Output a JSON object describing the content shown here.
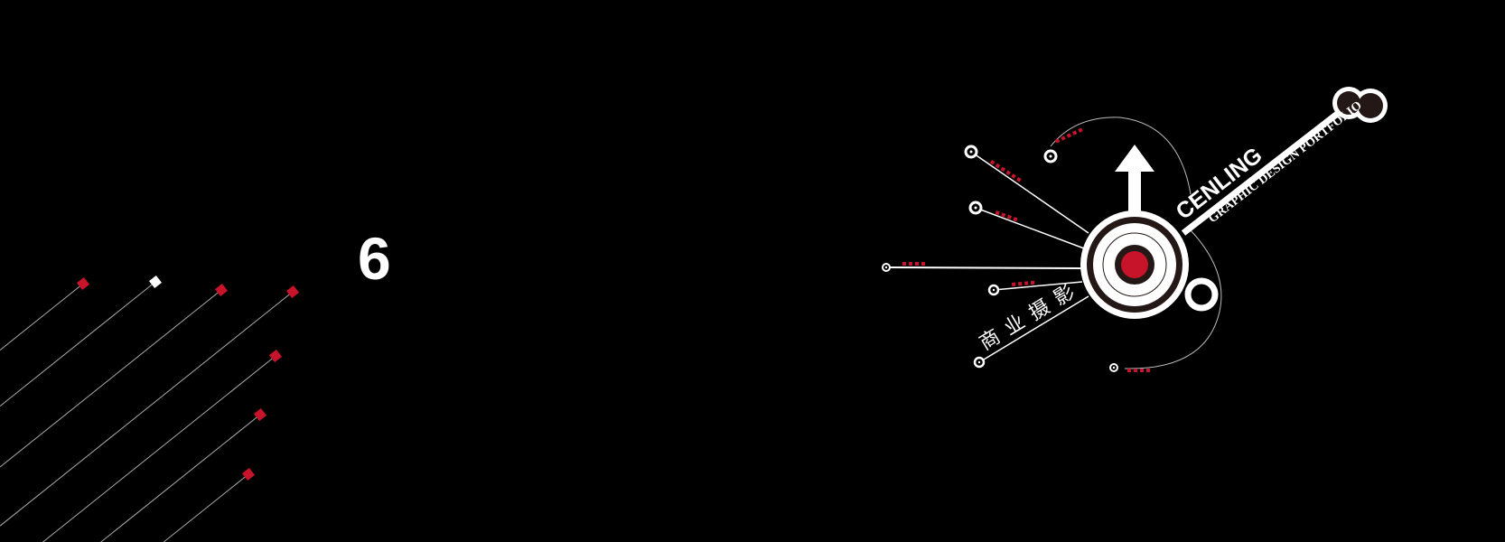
{
  "page_number": "6",
  "logo": {
    "brand": "CENLING",
    "subtitle": "GRAPHIC DESIGN PORTFOLIO",
    "tagline": "商业摄影"
  },
  "colors": {
    "background": "#000000",
    "accent": "#c8142a",
    "foreground": "#ffffff",
    "dark_ring": "#231815"
  }
}
